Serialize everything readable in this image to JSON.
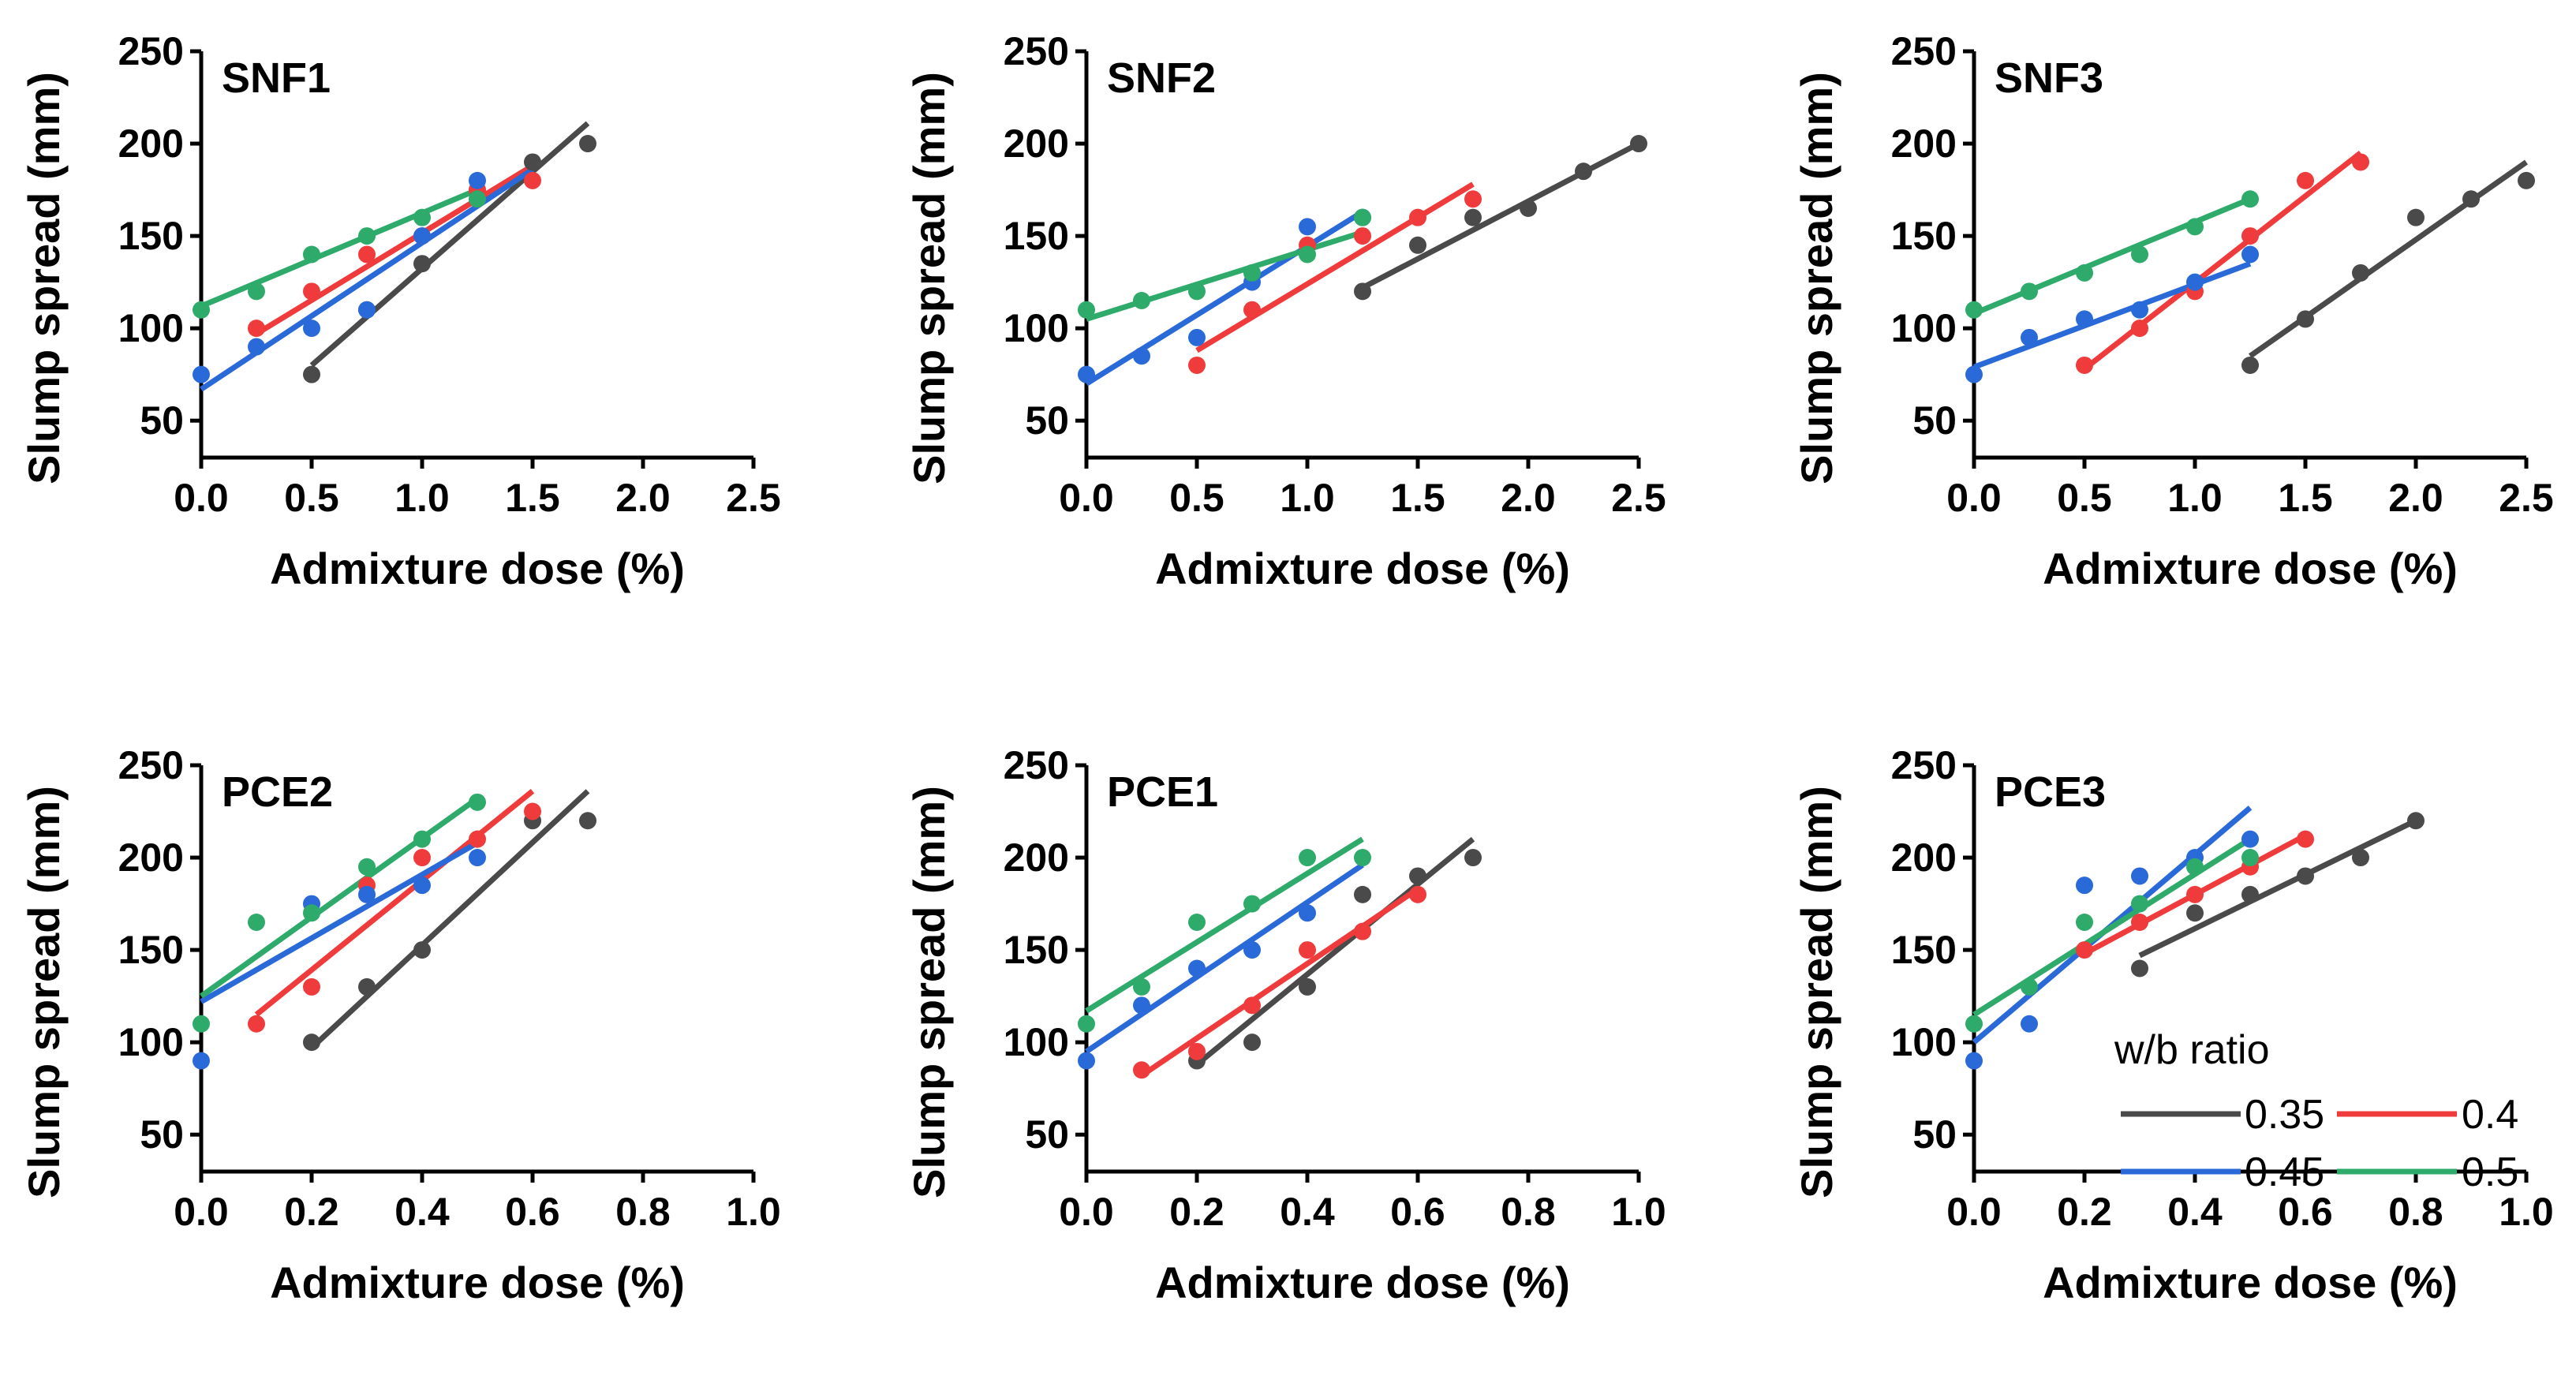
{
  "chart_data": [
    {
      "type": "scatter",
      "title": "SNF1",
      "xlabel": "Admixture dose (%)",
      "ylabel": "Slump spread (mm)",
      "xlim": [
        0,
        2.5
      ],
      "ylim": [
        30,
        250
      ],
      "xticks": [
        "0.0",
        "0.5",
        "1.0",
        "1.5",
        "2.0",
        "2.5"
      ],
      "xtick_values": [
        0,
        0.5,
        1.0,
        1.5,
        2.0,
        2.5
      ],
      "yticks": [
        "50",
        "100",
        "150",
        "200",
        "250"
      ],
      "ytick_values": [
        50,
        100,
        150,
        200,
        250
      ],
      "series": [
        {
          "name": "0.35",
          "x": [
            0.5,
            0.75,
            1.0,
            1.5,
            1.75
          ],
          "y": [
            75,
            110,
            135,
            190,
            200
          ],
          "fit": [
            [
              0.5,
              80
            ],
            [
              1.75,
              211
            ]
          ]
        },
        {
          "name": "0.4",
          "x": [
            0.25,
            0.5,
            0.75,
            1.0,
            1.25,
            1.5
          ],
          "y": [
            100,
            120,
            140,
            150,
            175,
            180
          ],
          "fit": [
            [
              0.25,
              97
            ],
            [
              1.5,
              188
            ]
          ]
        },
        {
          "name": "0.45",
          "x": [
            0.0,
            0.25,
            0.5,
            0.75,
            1.0,
            1.25
          ],
          "y": [
            75,
            90,
            100,
            110,
            150,
            180
          ],
          "fit": [
            [
              0.0,
              67
            ],
            [
              1.5,
              186
            ]
          ]
        },
        {
          "name": "0.5",
          "x": [
            0.0,
            0.25,
            0.5,
            0.75,
            1.0,
            1.25
          ],
          "y": [
            110,
            120,
            140,
            150,
            160,
            170
          ],
          "fit": [
            [
              0.0,
              112
            ],
            [
              1.25,
              175
            ]
          ]
        }
      ]
    },
    {
      "type": "scatter",
      "title": "SNF2",
      "xlabel": "Admixture dose (%)",
      "ylabel": "Slump spread (mm)",
      "xlim": [
        0,
        2.5
      ],
      "ylim": [
        30,
        250
      ],
      "xticks": [
        "0.0",
        "0.5",
        "1.0",
        "1.5",
        "2.0",
        "2.5"
      ],
      "xtick_values": [
        0,
        0.5,
        1.0,
        1.5,
        2.0,
        2.5
      ],
      "yticks": [
        "50",
        "100",
        "150",
        "200",
        "250"
      ],
      "ytick_values": [
        50,
        100,
        150,
        200,
        250
      ],
      "series": [
        {
          "name": "0.35",
          "x": [
            1.25,
            1.5,
            1.75,
            2.0,
            2.25,
            2.5
          ],
          "y": [
            120,
            145,
            160,
            165,
            185,
            200
          ],
          "fit": [
            [
              1.25,
              122
            ],
            [
              2.5,
              200
            ]
          ]
        },
        {
          "name": "0.4",
          "x": [
            0.5,
            0.75,
            1.0,
            1.25,
            1.5,
            1.75
          ],
          "y": [
            80,
            110,
            145,
            150,
            160,
            170
          ],
          "fit": [
            [
              0.5,
              88
            ],
            [
              1.75,
              178
            ]
          ]
        },
        {
          "name": "0.45",
          "x": [
            0.0,
            0.25,
            0.5,
            0.75,
            1.0,
            1.25
          ],
          "y": [
            75,
            85,
            95,
            125,
            155,
            160
          ],
          "fit": [
            [
              0.0,
              70
            ],
            [
              1.25,
              163
            ]
          ]
        },
        {
          "name": "0.5",
          "x": [
            0.0,
            0.25,
            0.5,
            0.75,
            1.0,
            1.25
          ],
          "y": [
            110,
            115,
            120,
            130,
            140,
            160
          ],
          "fit": [
            [
              0.0,
              105
            ],
            [
              1.25,
              152
            ]
          ]
        }
      ]
    },
    {
      "type": "scatter",
      "title": "SNF3",
      "xlabel": "Admixture dose (%)",
      "ylabel": "Slump spread (mm)",
      "xlim": [
        0,
        2.5
      ],
      "ylim": [
        30,
        250
      ],
      "xticks": [
        "0.0",
        "0.5",
        "1.0",
        "1.5",
        "2.0",
        "2.5"
      ],
      "xtick_values": [
        0,
        0.5,
        1.0,
        1.5,
        2.0,
        2.5
      ],
      "yticks": [
        "50",
        "100",
        "150",
        "200",
        "250"
      ],
      "ytick_values": [
        50,
        100,
        150,
        200,
        250
      ],
      "series": [
        {
          "name": "0.35",
          "x": [
            1.25,
            1.5,
            1.75,
            2.0,
            2.25,
            2.5
          ],
          "y": [
            80,
            105,
            130,
            160,
            170,
            180
          ],
          "fit": [
            [
              1.25,
              85
            ],
            [
              2.5,
              190
            ]
          ]
        },
        {
          "name": "0.4",
          "x": [
            0.5,
            0.75,
            1.0,
            1.25,
            1.5,
            1.75
          ],
          "y": [
            80,
            100,
            120,
            150,
            180,
            190
          ],
          "fit": [
            [
              0.5,
              78
            ],
            [
              1.75,
              195
            ]
          ]
        },
        {
          "name": "0.45",
          "x": [
            0.0,
            0.25,
            0.5,
            0.75,
            1.0,
            1.25
          ],
          "y": [
            75,
            95,
            105,
            110,
            125,
            140
          ],
          "fit": [
            [
              0.0,
              79
            ],
            [
              1.25,
              135
            ]
          ]
        },
        {
          "name": "0.5",
          "x": [
            0.0,
            0.25,
            0.5,
            0.75,
            1.0,
            1.25
          ],
          "y": [
            110,
            120,
            130,
            140,
            155,
            170
          ],
          "fit": [
            [
              0.0,
              108
            ],
            [
              1.25,
              170
            ]
          ]
        }
      ]
    },
    {
      "type": "scatter",
      "title": "PCE2",
      "xlabel": "Admixture dose (%)",
      "ylabel": "Slump spread (mm)",
      "xlim": [
        0,
        1.0
      ],
      "ylim": [
        30,
        250
      ],
      "xticks": [
        "0.0",
        "0.2",
        "0.4",
        "0.6",
        "0.8",
        "1.0"
      ],
      "xtick_values": [
        0,
        0.2,
        0.4,
        0.6,
        0.8,
        1.0
      ],
      "yticks": [
        "50",
        "100",
        "150",
        "200",
        "250"
      ],
      "ytick_values": [
        50,
        100,
        150,
        200,
        250
      ],
      "series": [
        {
          "name": "0.35",
          "x": [
            0.2,
            0.3,
            0.4,
            0.6,
            0.7
          ],
          "y": [
            100,
            130,
            150,
            220,
            220
          ],
          "fit": [
            [
              0.2,
              97
            ],
            [
              0.7,
              236
            ]
          ]
        },
        {
          "name": "0.4",
          "x": [
            0.1,
            0.2,
            0.3,
            0.4,
            0.5,
            0.6
          ],
          "y": [
            110,
            130,
            185,
            200,
            210,
            225
          ],
          "fit": [
            [
              0.1,
              115
            ],
            [
              0.6,
              236
            ]
          ]
        },
        {
          "name": "0.45",
          "x": [
            0.0,
            0.2,
            0.3,
            0.4,
            0.5
          ],
          "y": [
            90,
            175,
            180,
            185,
            200
          ],
          "fit": [
            [
              0.0,
              122
            ],
            [
              0.5,
              208
            ]
          ]
        },
        {
          "name": "0.5",
          "x": [
            0.0,
            0.1,
            0.2,
            0.3,
            0.4,
            0.5
          ],
          "y": [
            110,
            165,
            170,
            195,
            210,
            230
          ],
          "fit": [
            [
              0.0,
              125
            ],
            [
              0.5,
              232
            ]
          ]
        }
      ]
    },
    {
      "type": "scatter",
      "title": "PCE1",
      "xlabel": "Admixture dose (%)",
      "ylabel": "Slump spread (mm)",
      "xlim": [
        0,
        1.0
      ],
      "ylim": [
        30,
        250
      ],
      "xticks": [
        "0.0",
        "0.2",
        "0.4",
        "0.6",
        "0.8",
        "1.0"
      ],
      "xtick_values": [
        0,
        0.2,
        0.4,
        0.6,
        0.8,
        1.0
      ],
      "yticks": [
        "50",
        "100",
        "150",
        "200",
        "250"
      ],
      "ytick_values": [
        50,
        100,
        150,
        200,
        250
      ],
      "series": [
        {
          "name": "0.35",
          "x": [
            0.2,
            0.3,
            0.4,
            0.5,
            0.6,
            0.7
          ],
          "y": [
            90,
            100,
            130,
            180,
            190,
            200
          ],
          "fit": [
            [
              0.2,
              88
            ],
            [
              0.7,
              210
            ]
          ]
        },
        {
          "name": "0.4",
          "x": [
            0.1,
            0.2,
            0.3,
            0.4,
            0.5,
            0.6
          ],
          "y": [
            85,
            95,
            120,
            150,
            160,
            180
          ],
          "fit": [
            [
              0.1,
              82
            ],
            [
              0.6,
              183
            ]
          ]
        },
        {
          "name": "0.45",
          "x": [
            0.0,
            0.1,
            0.2,
            0.3,
            0.4
          ],
          "y": [
            90,
            120,
            140,
            150,
            170
          ],
          "fit": [
            [
              0.0,
              95
            ],
            [
              0.5,
              196
            ]
          ]
        },
        {
          "name": "0.5",
          "x": [
            0.0,
            0.1,
            0.2,
            0.3,
            0.4,
            0.5
          ],
          "y": [
            110,
            130,
            165,
            175,
            200,
            200
          ],
          "fit": [
            [
              0.0,
              117
            ],
            [
              0.5,
              210
            ]
          ]
        }
      ]
    },
    {
      "type": "scatter",
      "title": "PCE3",
      "xlabel": "Admixture dose (%)",
      "ylabel": "Slump spread (mm)",
      "xlim": [
        0,
        1.0
      ],
      "ylim": [
        30,
        250
      ],
      "xticks": [
        "0.0",
        "0.2",
        "0.4",
        "0.6",
        "0.8",
        "1.0"
      ],
      "xtick_values": [
        0,
        0.2,
        0.4,
        0.6,
        0.8,
        1.0
      ],
      "yticks": [
        "50",
        "100",
        "150",
        "200",
        "250"
      ],
      "ytick_values": [
        50,
        100,
        150,
        200,
        250
      ],
      "series": [
        {
          "name": "0.35",
          "x": [
            0.3,
            0.4,
            0.5,
            0.6,
            0.7,
            0.8
          ],
          "y": [
            140,
            170,
            180,
            190,
            200,
            220
          ],
          "fit": [
            [
              0.3,
              147
            ],
            [
              0.8,
              220
            ]
          ]
        },
        {
          "name": "0.4",
          "x": [
            0.2,
            0.3,
            0.4,
            0.5,
            0.6
          ],
          "y": [
            150,
            165,
            180,
            195,
            210
          ],
          "fit": [
            [
              0.2,
              148
            ],
            [
              0.6,
              212
            ]
          ]
        },
        {
          "name": "0.45",
          "x": [
            0.0,
            0.1,
            0.2,
            0.3,
            0.4,
            0.5
          ],
          "y": [
            90,
            110,
            185,
            190,
            200,
            210
          ],
          "fit": [
            [
              0.0,
              100
            ],
            [
              0.5,
              227
            ]
          ]
        },
        {
          "name": "0.5",
          "x": [
            0.0,
            0.1,
            0.2,
            0.3,
            0.4,
            0.5
          ],
          "y": [
            110,
            130,
            165,
            175,
            195,
            200
          ],
          "fit": [
            [
              0.0,
              115
            ],
            [
              0.5,
              210
            ]
          ]
        }
      ]
    }
  ],
  "legend": {
    "title": "w/b ratio",
    "entries": [
      {
        "label": "0.35",
        "color": "#4a4a4a"
      },
      {
        "label": "0.4",
        "color": "#ef3b3b"
      },
      {
        "label": "0.45",
        "color": "#2a6ad8"
      },
      {
        "label": "0.5",
        "color": "#2eaa6a"
      }
    ],
    "placement": "bottom-right of PCE3 panel"
  },
  "colors": {
    "0.35": "#4a4a4a",
    "0.4": "#ef3b3b",
    "0.45": "#2a6ad8",
    "0.5": "#2eaa6a"
  }
}
